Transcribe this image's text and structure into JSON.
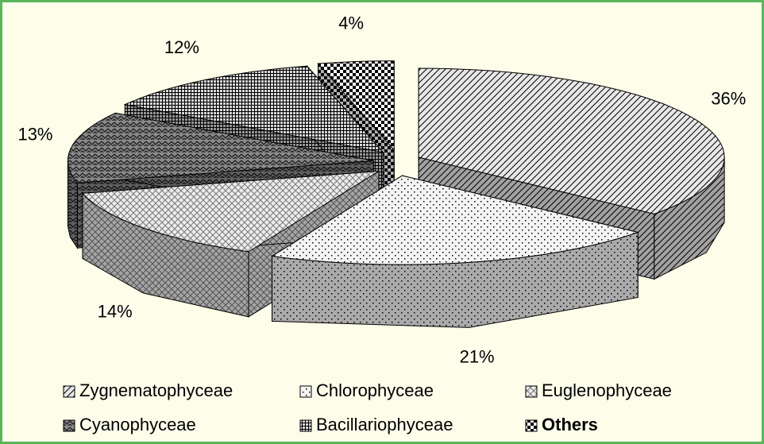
{
  "chart_data": {
    "type": "pie3d",
    "categories": [
      "Zygnematophyceae",
      "Chlorophyceae",
      "Euglenophyceae",
      "Cyanophyceae",
      "Bacillariophyceae",
      "Others"
    ],
    "values": [
      36,
      21,
      14,
      13,
      12,
      4
    ],
    "value_labels": [
      "36%",
      "21%",
      "14%",
      "13%",
      "12%",
      "4%"
    ],
    "colors": [
      "#e8e8e8",
      "#f4f4f4",
      "#ececec",
      "#8a8a8a",
      "#d8d8d8",
      "#ffffff"
    ],
    "legend": "bottom"
  }
}
